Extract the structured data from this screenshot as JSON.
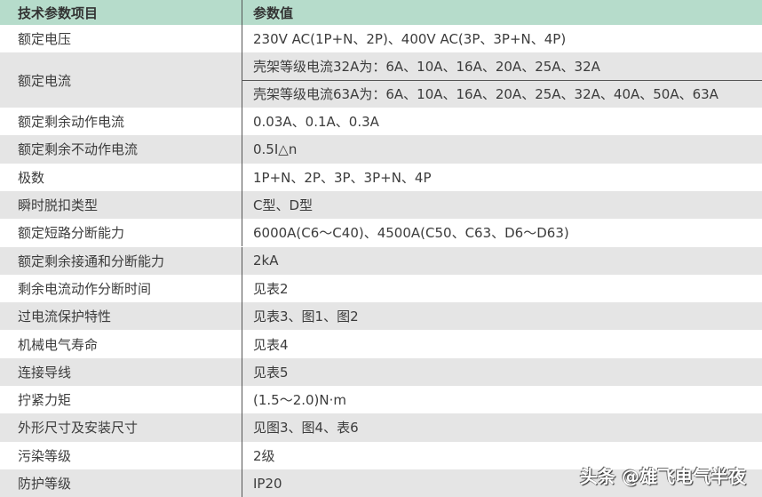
{
  "header": {
    "col1": "技术参数项目",
    "col2": "参数值"
  },
  "rows": [
    {
      "label": "额定电压",
      "value": "230V AC(1P+N、2P)、400V AC(3P、3P+N、4P)"
    },
    {
      "label": "额定电流",
      "values": [
        "壳架等级电流32A为：6A、10A、16A、20A、25A、32A",
        "壳架等级电流63A为：6A、10A、16A、20A、25A、32A、40A、50A、63A"
      ]
    },
    {
      "label": "额定剩余动作电流",
      "value": "0.03A、0.1A、0.3A"
    },
    {
      "label": "额定剩余不动作电流",
      "value": "0.5I△n"
    },
    {
      "label": "极数",
      "value": "1P+N、2P、3P、3P+N、4P"
    },
    {
      "label": "瞬时脱扣类型",
      "value": "C型、D型"
    },
    {
      "label": "额定短路分断能力",
      "value": "6000A(C6～C40)、4500A(C50、C63、D6～D63)"
    },
    {
      "label": "额定剩余接通和分断能力",
      "value": "2kA"
    },
    {
      "label": "剩余电流动作分断时间",
      "value": "见表2"
    },
    {
      "label": "过电流保护特性",
      "value": "见表3、图1、图2"
    },
    {
      "label": "机械电气寿命",
      "value": "见表4"
    },
    {
      "label": "连接导线",
      "value": "见表5"
    },
    {
      "label": "拧紧力矩",
      "value": "(1.5～2.0)N·m"
    },
    {
      "label": "外形尺寸及安装尺寸",
      "value": "见图3、图4、表6"
    },
    {
      "label": "污染等级",
      "value": "2级"
    },
    {
      "label": "防护等级",
      "value": "IP20"
    }
  ],
  "watermark": "头条 @雄飞电气半夜",
  "colors": {
    "header_bg": "#b6dccb",
    "stripe": "#e5e5e5"
  }
}
